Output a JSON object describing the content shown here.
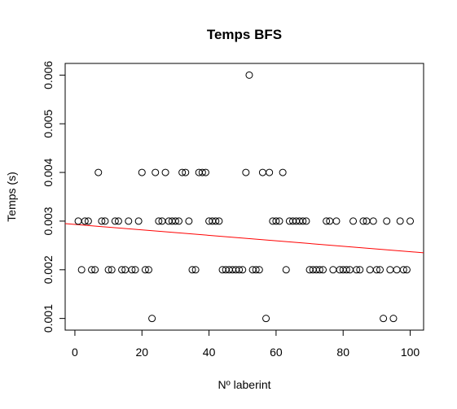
{
  "chart_data": {
    "type": "scatter",
    "title": "Temps BFS",
    "xlabel": "Nº laberint",
    "ylabel": "Temps (s)",
    "xlim": [
      -2.9,
      104.0
    ],
    "ylim": [
      0.00076,
      0.00624
    ],
    "x_ticks": [
      0,
      20,
      40,
      60,
      80,
      100
    ],
    "x_tick_labels": [
      "0",
      "20",
      "40",
      "60",
      "80",
      "100"
    ],
    "y_ticks": [
      0.001,
      0.002,
      0.003,
      0.004,
      0.005,
      0.006
    ],
    "y_tick_labels": [
      "0.001",
      "0.002",
      "0.003",
      "0.004",
      "0.005",
      "0.006"
    ],
    "grid": false,
    "series": [
      {
        "marker": "open-circle",
        "color": "#000000",
        "x": [
          1,
          2,
          3,
          4,
          5,
          6,
          7,
          8,
          9,
          10,
          11,
          12,
          13,
          14,
          15,
          16,
          17,
          18,
          19,
          20,
          21,
          22,
          23,
          24,
          25,
          26,
          27,
          28,
          29,
          30,
          31,
          32,
          33,
          34,
          35,
          36,
          37,
          38,
          39,
          40,
          41,
          42,
          43,
          44,
          45,
          46,
          47,
          48,
          49,
          50,
          51,
          52,
          53,
          54,
          55,
          56,
          57,
          58,
          59,
          60,
          61,
          62,
          63,
          64,
          65,
          66,
          67,
          68,
          69,
          70,
          71,
          72,
          73,
          74,
          75,
          76,
          77,
          78,
          79,
          80,
          81,
          82,
          83,
          84,
          85,
          86,
          87,
          88,
          89,
          90,
          91,
          92,
          93,
          94,
          95,
          96,
          97,
          98,
          99,
          100
        ],
        "y": [
          0.003,
          0.002,
          0.003,
          0.003,
          0.002,
          0.002,
          0.004,
          0.003,
          0.003,
          0.002,
          0.002,
          0.003,
          0.003,
          0.002,
          0.002,
          0.003,
          0.002,
          0.002,
          0.003,
          0.004,
          0.002,
          0.002,
          0.001,
          0.004,
          0.003,
          0.003,
          0.004,
          0.003,
          0.003,
          0.003,
          0.003,
          0.004,
          0.004,
          0.003,
          0.002,
          0.002,
          0.004,
          0.004,
          0.004,
          0.003,
          0.003,
          0.003,
          0.003,
          0.002,
          0.002,
          0.002,
          0.002,
          0.002,
          0.002,
          0.002,
          0.004,
          0.006,
          0.002,
          0.002,
          0.002,
          0.004,
          0.001,
          0.004,
          0.003,
          0.003,
          0.003,
          0.004,
          0.002,
          0.003,
          0.003,
          0.003,
          0.003,
          0.003,
          0.003,
          0.002,
          0.002,
          0.002,
          0.002,
          0.002,
          0.003,
          0.003,
          0.002,
          0.003,
          0.002,
          0.002,
          0.002,
          0.002,
          0.003,
          0.002,
          0.002,
          0.003,
          0.003,
          0.002,
          0.003,
          0.002,
          0.002,
          0.001,
          0.003,
          0.002,
          0.001,
          0.002,
          0.003,
          0.002,
          0.002,
          0.003
        ]
      }
    ],
    "trend_line": {
      "color": "#ff0000",
      "x": [
        -2.9,
        104.0
      ],
      "y": [
        0.002948,
        0.002349
      ]
    }
  }
}
